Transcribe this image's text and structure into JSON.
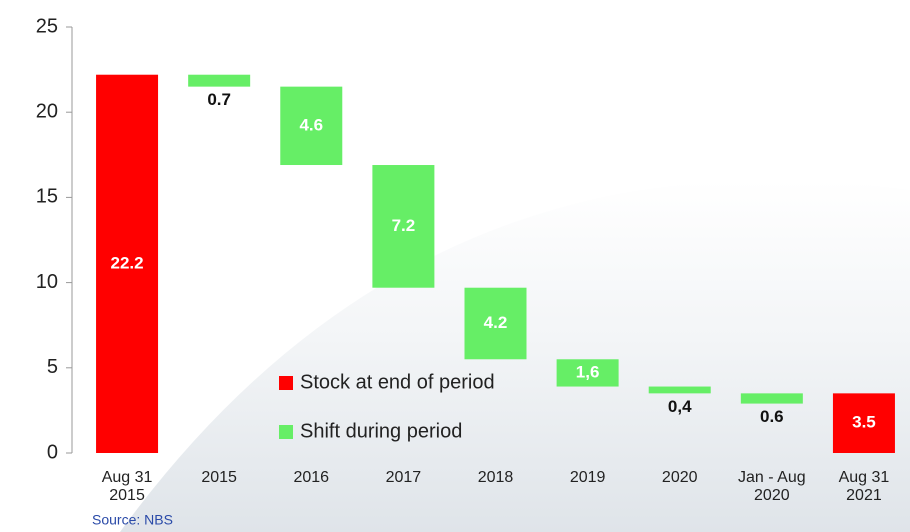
{
  "chart_data": {
    "type": "waterfall",
    "categories": [
      [
        "Aug 31",
        "2015"
      ],
      [
        "2015"
      ],
      [
        "2016"
      ],
      [
        "2017"
      ],
      [
        "2018"
      ],
      [
        "2019"
      ],
      [
        "2020"
      ],
      [
        "Jan - Aug",
        "2020"
      ],
      [
        "Aug 31",
        "2021"
      ]
    ],
    "series": [
      {
        "name": "Stock at end of period",
        "color": "#ff0000",
        "kind": "stock",
        "values": [
          22.2,
          null,
          null,
          null,
          null,
          null,
          null,
          null,
          3.5
        ],
        "value_labels": [
          "22.2",
          null,
          null,
          null,
          null,
          null,
          null,
          null,
          "3.5"
        ]
      },
      {
        "name": "Shift during period",
        "color": "#66ee66",
        "kind": "shift",
        "values": [
          null,
          0.7,
          4.6,
          7.2,
          4.2,
          1.6,
          0.4,
          0.6,
          null
        ],
        "value_labels": [
          null,
          "0.7",
          "4.6",
          "7.2",
          "4.2",
          "1,6",
          "0,4",
          "0.6",
          null
        ]
      }
    ],
    "ylim": [
      0,
      25
    ],
    "yticks": [
      0,
      5,
      10,
      15,
      20,
      25
    ],
    "source": "Source: NBS"
  }
}
